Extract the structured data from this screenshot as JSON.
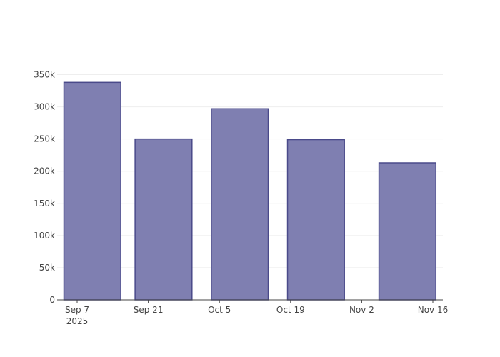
{
  "chart_data": {
    "type": "bar",
    "x": [
      "2025-09-10",
      "2025-09-24",
      "2025-10-09",
      "2025-10-24",
      "2025-11-11"
    ],
    "values": [
      338000,
      250000,
      297000,
      249000,
      213000
    ],
    "color": "#7f7fb1",
    "line_color": "#4a4a8a",
    "xlim": [
      "2025-09-03T01:30",
      "2025-11-17T23:15"
    ],
    "xticks": [
      {
        "value": "2025-09-07",
        "label": "Sep 7\n2025"
      },
      {
        "value": "2025-09-21",
        "label": "Sep 21"
      },
      {
        "value": "2025-10-05",
        "label": "Oct 5"
      },
      {
        "value": "2025-10-19",
        "label": "Oct 19"
      },
      {
        "value": "2025-11-02",
        "label": "Nov 2"
      },
      {
        "value": "2025-11-16",
        "label": "Nov 16"
      }
    ],
    "ylim": [
      0,
      355000
    ],
    "yticks": [
      0,
      {
        "value": 50000,
        "label": "50k"
      },
      {
        "value": 100000,
        "label": "100k"
      },
      {
        "value": 150000,
        "label": "150k"
      },
      {
        "value": 200000,
        "label": "200k"
      },
      {
        "value": 250000,
        "label": "250k"
      },
      {
        "value": 300000,
        "label": "300k"
      },
      {
        "value": 350000,
        "label": "350k"
      }
    ],
    "grid": true
  }
}
